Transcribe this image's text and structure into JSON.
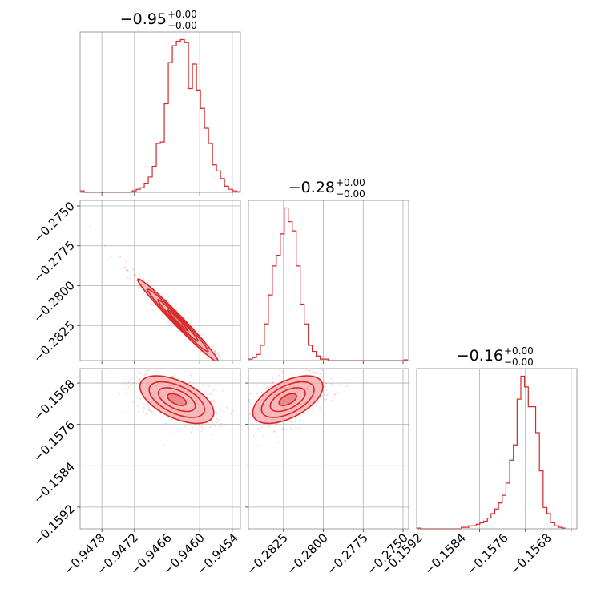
{
  "colors": {
    "accent": "#d62728",
    "fill": "#f4a6a8",
    "grid": "#b0b0b0"
  },
  "chart_data": [
    {
      "type": "histogram",
      "panel": "diag-0",
      "title_value": "−0.95",
      "title_plus": "+0.00",
      "title_minus": "−0.00",
      "xlim": [
        -0.9482,
        -0.94525
      ],
      "ylim": [
        0,
        1.05
      ],
      "xticks": [
        -0.9478,
        -0.9472,
        -0.9466,
        -0.946,
        -0.9454
      ],
      "bin_start": -0.9482,
      "bin_width": 7.38e-05,
      "counts": [
        0.01,
        0,
        0,
        0,
        0,
        0,
        0,
        0,
        0,
        0,
        0,
        0,
        0,
        0.01,
        0.02,
        0.03,
        0.06,
        0.1,
        0.17,
        0.32,
        0.33,
        0.58,
        0.85,
        0.96,
        0.99,
        1.0,
        0.98,
        0.68,
        0.84,
        0.67,
        0.55,
        0.42,
        0.32,
        0.18,
        0.14,
        0.09,
        0.04,
        0.02,
        0.01,
        0.005
      ]
    },
    {
      "type": "histogram",
      "panel": "diag-1",
      "title_value": "−0.28",
      "title_plus": "+0.00",
      "title_minus": "−0.00",
      "xlim": [
        -0.2847,
        -0.27465
      ],
      "ylim": [
        0,
        1.05
      ],
      "xticks": [
        -0.2825,
        -0.28,
        -0.2775,
        -0.275
      ],
      "bin_start": -0.2847,
      "bin_width": 0.00025,
      "counts": [
        0.01,
        0.02,
        0.04,
        0.1,
        0.24,
        0.43,
        0.62,
        0.69,
        0.83,
        1.0,
        0.91,
        0.85,
        0.62,
        0.37,
        0.24,
        0.1,
        0.06,
        0.03,
        0.01,
        0.01,
        0,
        0,
        0,
        0,
        0,
        0,
        0,
        0,
        0,
        0,
        0,
        0,
        0,
        0,
        0,
        0,
        0,
        0,
        0,
        0.005
      ]
    },
    {
      "type": "histogram",
      "panel": "diag-2",
      "title_value": "−0.16",
      "title_plus": "+0.00",
      "title_minus": "−0.00",
      "xlim": [
        -0.1595,
        -0.1567
      ],
      "ylim": [
        0,
        1.05
      ],
      "xticks": [
        -0.1592,
        -0.1584,
        -0.1576,
        -0.1568
      ],
      "bin_start": -0.1595,
      "bin_width": 6.5e-05,
      "counts": [
        0.005,
        0,
        0,
        0,
        0,
        0,
        0,
        0,
        0,
        0,
        0,
        0,
        0.01,
        0.01,
        0.02,
        0.02,
        0.03,
        0.04,
        0.05,
        0.07,
        0.1,
        0.13,
        0.17,
        0.22,
        0.3,
        0.45,
        0.55,
        0.85,
        1.0,
        0.93,
        0.8,
        0.8,
        0.63,
        0.38,
        0.14,
        0.1,
        0.04,
        0.02,
        0.01,
        0.005
      ]
    },
    {
      "type": "scatter",
      "panel": "off-1-0",
      "xlim": [
        -0.9482,
        -0.94525
      ],
      "ylim": [
        -0.2847,
        -0.27465
      ],
      "yticks": [
        -0.275,
        -0.2775,
        -0.28,
        -0.2825
      ],
      "mean": [
        -0.9464,
        -0.28218
      ],
      "sigma": [
        0.00037,
        0.0013
      ],
      "rho": -0.985
    },
    {
      "type": "scatter",
      "panel": "off-2-0",
      "xlim": [
        -0.9482,
        -0.94525
      ],
      "ylim": [
        -0.15962,
        -0.15652
      ],
      "yticks": [
        -0.1568,
        -0.1576,
        -0.1584,
        -0.1592
      ],
      "mean": [
        -0.94642,
        -0.15712
      ],
      "sigma": [
        0.00034,
        0.00023
      ],
      "rho": -0.55
    },
    {
      "type": "scatter",
      "panel": "off-2-1",
      "xlim": [
        -0.2847,
        -0.27465
      ],
      "ylim": [
        -0.15962,
        -0.15652
      ],
      "mean": [
        -0.28223,
        -0.15712
      ],
      "sigma": [
        0.0011,
        0.00023
      ],
      "rho": 0.55
    }
  ],
  "tick_text": {
    "d0x": [
      "−0.9478",
      "−0.9472",
      "−0.9466",
      "−0.9460",
      "−0.9454"
    ],
    "d1x": [
      "−0.2825",
      "−0.2800",
      "−0.2775",
      "−0.2750"
    ],
    "d2x": [
      "−0.1592",
      "−0.1584",
      "−0.1576",
      "−0.1568"
    ],
    "r1y": [
      "−0.2750",
      "−0.2775",
      "−0.2800",
      "−0.2825"
    ],
    "r2y": [
      "−0.1568",
      "−0.1576",
      "−0.1584",
      "−0.1592"
    ]
  }
}
